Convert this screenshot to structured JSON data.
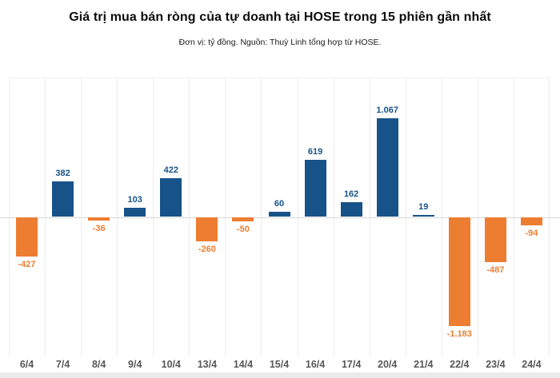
{
  "header": {
    "title": "Giá trị mua bán ròng của tự doanh tại HOSE trong 15 phiên gần nhất",
    "subtitle": "Đơn vị: tỷ đồng. Nguồn: Thuỳ Linh tổng hợp từ HOSE."
  },
  "chart_data": {
    "type": "bar",
    "title": "Giá trị mua bán ròng của tự doanh tại HOSE trong 15 phiên gần nhất",
    "subtitle": "Đơn vị: tỷ đồng. Nguồn: Thuỳ Linh tổng hợp từ HOSE.",
    "unit": "tỷ đồng",
    "categories": [
      "6/4",
      "7/4",
      "8/4",
      "9/4",
      "10/4",
      "13/4",
      "14/4",
      "15/4",
      "16/4",
      "17/4",
      "20/4",
      "21/4",
      "22/4",
      "23/4",
      "24/4"
    ],
    "values": [
      -427,
      382,
      -36,
      103,
      422,
      -260,
      -50,
      60,
      619,
      162,
      1067,
      19,
      -1183,
      -487,
      -94
    ],
    "value_labels": [
      "-427",
      "382",
      "-36",
      "103",
      "422",
      "-260",
      "-50",
      "60",
      "619",
      "162",
      "1.067",
      "19",
      "-1.183",
      "-487",
      "-94"
    ],
    "xlabel": "",
    "ylabel": "",
    "ylim": [
      -1500,
      1500
    ],
    "grid": "vertical-only",
    "legend": "none",
    "colors": {
      "positive": "#175289",
      "negative": "#ed7d31",
      "positive_label": "#175289",
      "negative_label": "#ed7d31",
      "axis_label": "#58585a",
      "gridline": "#ededed",
      "zero_line": "#d9d9d9",
      "footer_band": "#ebebeb",
      "background": "#ffffff"
    }
  }
}
